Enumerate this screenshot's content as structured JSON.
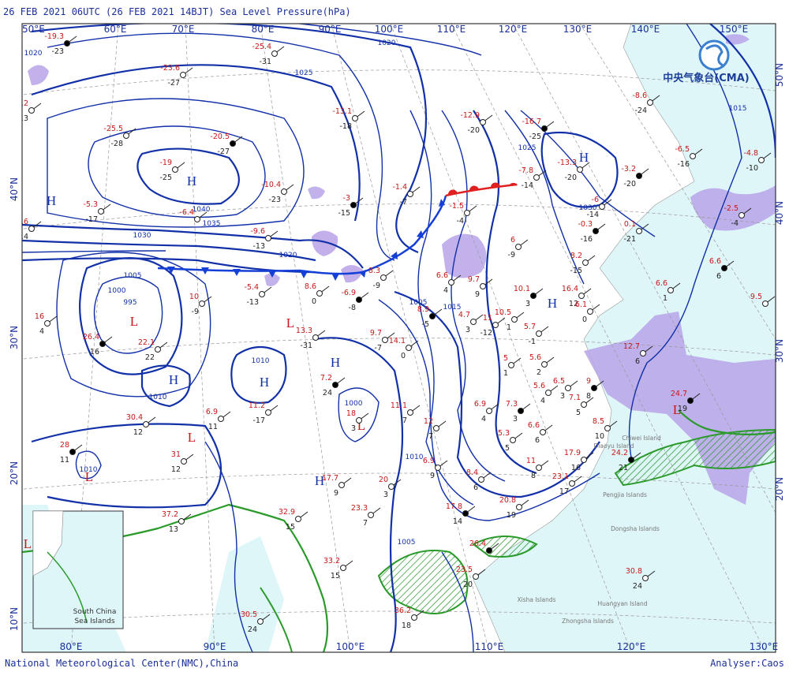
{
  "header": {
    "title": "26 FEB 2021 06UTC  (26 FEB 2021 14BJT) Sea Level Pressure(hPa)"
  },
  "logo": {
    "text": "中央气象台(CMA)"
  },
  "axes": {
    "top_lon": [
      "50°E",
      "60°E",
      "70°E",
      "80°E",
      "90°E",
      "100°E",
      "110°E",
      "120°E",
      "130°E",
      "140°E",
      "150°E"
    ],
    "bottom_lon": [
      "80°E",
      "90°E",
      "100°E",
      "110°E",
      "120°E",
      "130°E"
    ],
    "left_lat": [
      "40°N",
      "30°N",
      "20°N",
      "10°N"
    ],
    "right_lat": [
      "50°N",
      "40°N",
      "30°N",
      "20°N"
    ]
  },
  "pressure_centers": [
    "H",
    "H",
    "H",
    "H",
    "H",
    "H",
    "H",
    "H",
    "L",
    "L",
    "L",
    "L",
    "L",
    "L",
    "L"
  ],
  "isobar_labels": [
    "1020",
    "1025",
    "1020",
    "1040",
    "1035",
    "1030",
    "1020",
    "1005",
    "1000",
    "995",
    "1010",
    "1010",
    "1000",
    "1005",
    "1015",
    "1025",
    "1030",
    "1015",
    "1005",
    "1010",
    "1010"
  ],
  "stations": [
    {
      "temp": "-19.3",
      "dew": "-23"
    },
    {
      "temp": "-25.4",
      "dew": "-31"
    },
    {
      "temp": "-23.6",
      "dew": "-27"
    },
    {
      "temp": "11.2",
      "dew": "13"
    },
    {
      "temp": "-25.5",
      "dew": "-28"
    },
    {
      "temp": "-20.5",
      "dew": "-27"
    },
    {
      "temp": "-19",
      "dew": "-25"
    },
    {
      "temp": "-10.4",
      "dew": "-23"
    },
    {
      "temp": "-13.1",
      "dew": "-18"
    },
    {
      "temp": "-12.9",
      "dew": "-20"
    },
    {
      "temp": "-16.7",
      "dew": "-25"
    },
    {
      "temp": "-5.3",
      "dew": "-17"
    },
    {
      "temp": "-3.6",
      "dew": "-14"
    },
    {
      "temp": "-6.4"
    },
    {
      "temp": "-9.6",
      "dew": "-13"
    },
    {
      "temp": "-3",
      "dew": "-15"
    },
    {
      "temp": "-1.4",
      "dew": "-7"
    },
    {
      "temp": "-1.5",
      "dew": "-4"
    },
    {
      "temp": "-7.8",
      "dew": "-14"
    },
    {
      "temp": "-13.3",
      "dew": "-20"
    },
    {
      "temp": "-3.2",
      "dew": "-20"
    },
    {
      "temp": "-8.6",
      "dew": "-24"
    },
    {
      "temp": "-6.5",
      "dew": "-16"
    },
    {
      "temp": "-4.8",
      "dew": "-10"
    },
    {
      "temp": "-6",
      "dew": "-14"
    },
    {
      "temp": "-0.3",
      "dew": "-16"
    },
    {
      "temp": "0.1",
      "dew": "-21"
    },
    {
      "temp": "-2.5",
      "dew": "-4"
    },
    {
      "temp": "6",
      "dew": "-9"
    },
    {
      "temp": "8.2",
      "dew": "-15"
    },
    {
      "temp": "6.6",
      "dew": "6"
    },
    {
      "temp": "6.6",
      "dew": "1"
    },
    {
      "temp": "9.5"
    },
    {
      "temp": "6.6",
      "dew": "4"
    },
    {
      "temp": "8.3",
      "dew": "-9"
    },
    {
      "temp": "-6.9",
      "dew": "-8"
    },
    {
      "temp": "8.6",
      "dew": "0"
    },
    {
      "temp": "-5.4",
      "dew": "-13"
    },
    {
      "temp": "10",
      "dew": "-9"
    },
    {
      "temp": "16",
      "dew": "4"
    },
    {
      "temp": "26.4",
      "dew": "16"
    },
    {
      "temp": "22.1",
      "dew": "22"
    },
    {
      "temp": "13.3",
      "dew": "-31"
    },
    {
      "temp": "9.7",
      "dew": "-7"
    },
    {
      "temp": "14.1",
      "dew": "0"
    },
    {
      "temp": "8.9",
      "dew": "-5"
    },
    {
      "temp": "4.7",
      "dew": "3"
    },
    {
      "temp": "11",
      "dew": "-12"
    },
    {
      "temp": "10.5",
      "dew": "1"
    },
    {
      "temp": "5.7",
      "dew": "-1"
    },
    {
      "temp": "10.1",
      "dew": "3"
    },
    {
      "temp": "16.4",
      "dew": "12"
    },
    {
      "temp": "6.1",
      "dew": "0"
    },
    {
      "temp": "9.7",
      "dew": "9"
    },
    {
      "temp": "12.7",
      "dew": "6"
    },
    {
      "temp": "24.7",
      "dew": "19"
    },
    {
      "temp": "5.6",
      "dew": "2"
    },
    {
      "temp": "5",
      "dew": "1"
    },
    {
      "temp": "5.6",
      "dew": "4"
    },
    {
      "temp": "6.5",
      "dew": "3"
    },
    {
      "temp": "9",
      "dew": "8"
    },
    {
      "temp": "7.1",
      "dew": "5"
    },
    {
      "temp": "8.5",
      "dew": "10"
    },
    {
      "temp": "6.9",
      "dew": "11"
    },
    {
      "temp": "11.2",
      "dew": "-17"
    },
    {
      "temp": "7.2",
      "dew": "24"
    },
    {
      "temp": "11.1",
      "dew": "7"
    },
    {
      "temp": "12",
      "dew": "7"
    },
    {
      "temp": "18",
      "dew": "3"
    },
    {
      "temp": "6.9",
      "dew": "4"
    },
    {
      "temp": "7.3",
      "dew": "3"
    },
    {
      "temp": "5.3",
      "dew": "5"
    },
    {
      "temp": "6.6",
      "dew": "6"
    },
    {
      "temp": "30.4",
      "dew": "12"
    },
    {
      "temp": "31",
      "dew": "12"
    },
    {
      "temp": "28",
      "dew": "11"
    },
    {
      "temp": "6.9",
      "dew": "9"
    },
    {
      "temp": "8.4",
      "dew": "6"
    },
    {
      "temp": "11",
      "dew": "8"
    },
    {
      "temp": "17.9",
      "dew": "16"
    },
    {
      "temp": "24.2",
      "dew": "21"
    },
    {
      "temp": "23.1",
      "dew": "17"
    },
    {
      "temp": "17.7",
      "dew": "9"
    },
    {
      "temp": "20",
      "dew": "3"
    },
    {
      "temp": "20.8",
      "dew": "19"
    },
    {
      "temp": "17.8",
      "dew": "14"
    },
    {
      "temp": "23.3",
      "dew": "7"
    },
    {
      "temp": "32.9",
      "dew": "15"
    },
    {
      "temp": "37.2",
      "dew": "13"
    },
    {
      "temp": "33.2",
      "dew": "15"
    },
    {
      "temp": "26.4"
    },
    {
      "temp": "23.5",
      "dew": "20"
    },
    {
      "temp": "30.8",
      "dew": "24"
    },
    {
      "temp": "30.5",
      "dew": "24"
    },
    {
      "temp": "36.2",
      "dew": "18"
    }
  ],
  "islands": [
    "Diaoyu Island",
    "Chiwei Island",
    "Pengjia Islands",
    "Dongsha Islands",
    "Xisha Islands",
    "Huangyan Island",
    "Zhongsha Islands"
  ],
  "inset": {
    "label": [
      "South China",
      "Sea Islands"
    ]
  },
  "footer": {
    "left": "National Meteorological Center(NMC),China",
    "right": "Analyser:Caos"
  }
}
